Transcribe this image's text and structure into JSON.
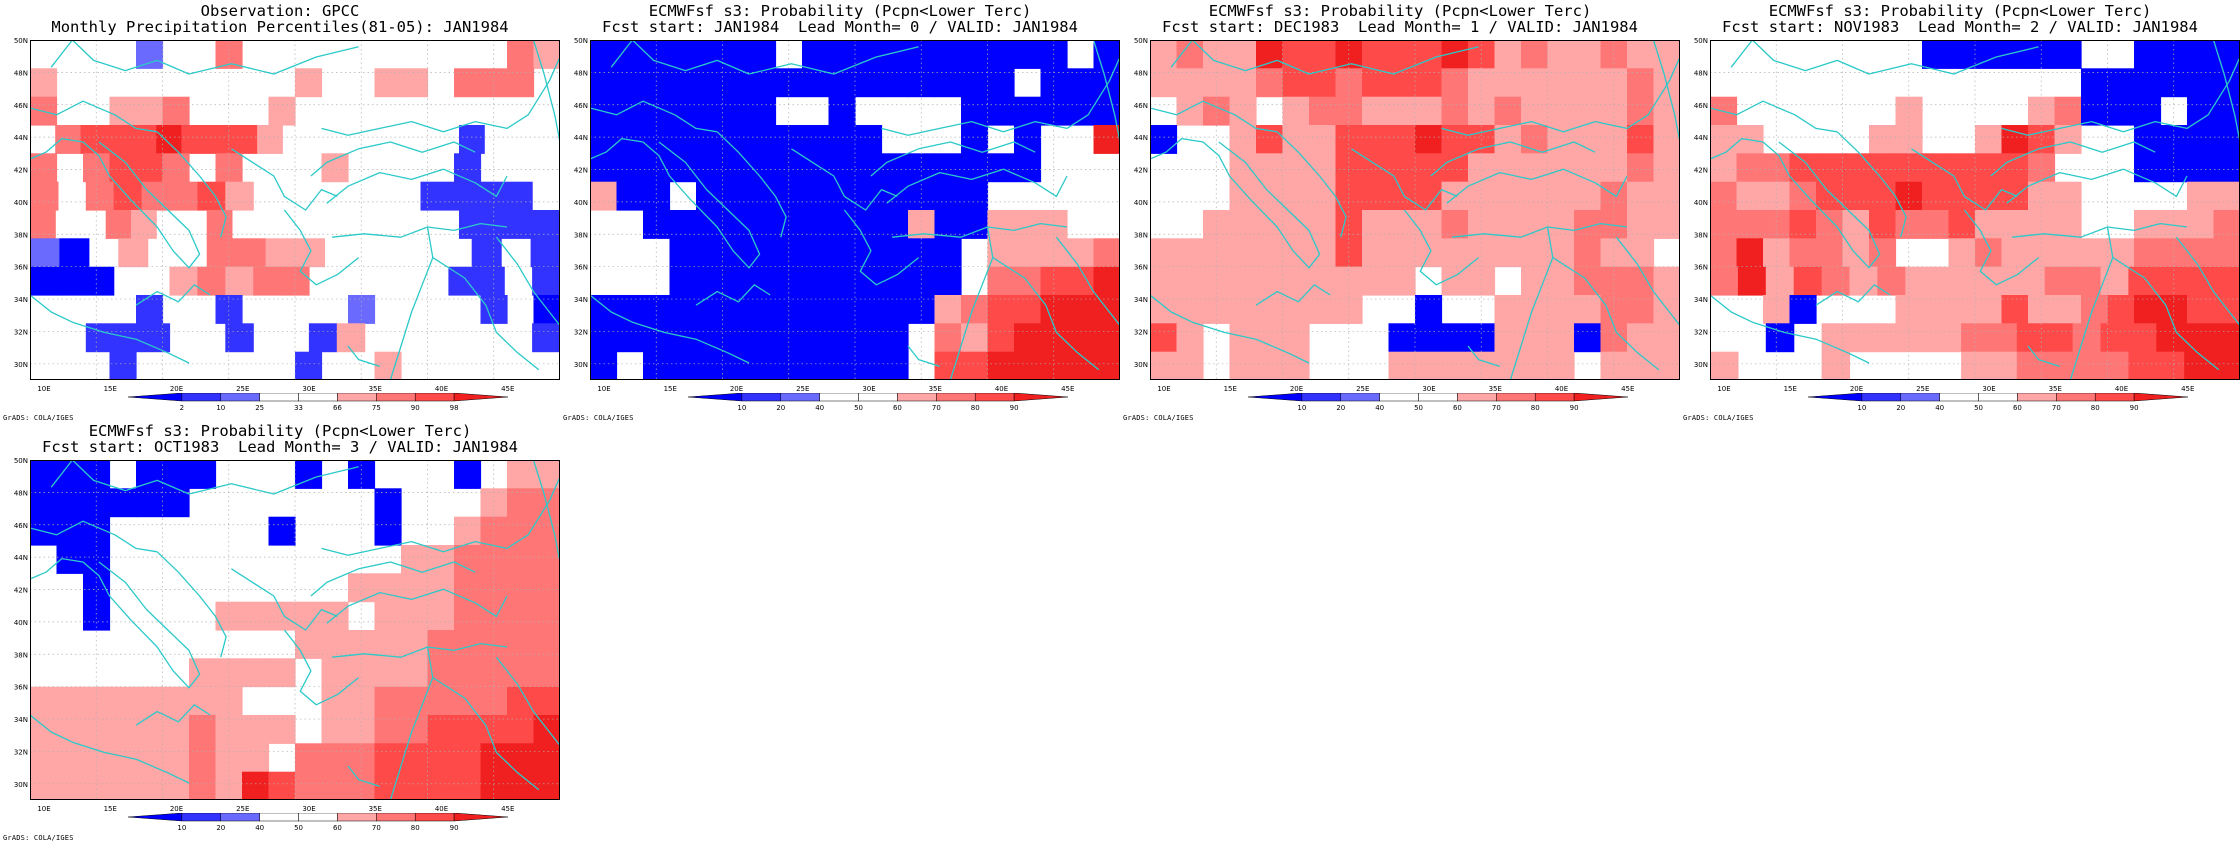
{
  "colors": {
    "blues": [
      "#0000ff",
      "#3333ff",
      "#6a6aff",
      "#9d9dff"
    ],
    "reds": [
      "#ffa6a6",
      "#ff7676",
      "#ff4a4a",
      "#f02020",
      "#d40000"
    ],
    "coast": "#2cc9c9",
    "grid": "#b0b0b0"
  },
  "map": {
    "lon_ticks": [
      "10E",
      "15E",
      "20E",
      "25E",
      "30E",
      "35E",
      "40E",
      "45E"
    ],
    "lat_ticks": [
      "50N",
      "48N",
      "46N",
      "44N",
      "42N",
      "40N",
      "38N",
      "36N",
      "34N",
      "32N",
      "30N"
    ],
    "credit": "GrADS: COLA/IGES"
  },
  "panels": [
    {
      "title1": "Observation: GPCC",
      "title2": "Monthly Precipitation Percentiles(81-05): JAN1984",
      "levels": [
        "2",
        "10",
        "25",
        "33",
        "66",
        "75",
        "90",
        "98"
      ],
      "kind": "obs",
      "grid": [
        "....3..R..........RS",
        "S.........S..SS.RRR.",
        "R..SSR...S..........",
        ".RTTTUTTTS.......2...",
        "R.RTTR.R...S....2...",
        "R.RTRRTS......2222.",
        "R..RS..R.........2222",
        "31.S..RRSS.....2.2",
        "111..SRSRR.....22.2",
        "....2..2....3....2.1",
        "..222..2..2S......2",
        "...2......2..S......"
      ]
    },
    {
      "title1": "ECMWFsf s3: Probability (Pcpn<Lower Terc)",
      "title2": "Fcst start: JAN1984  Lead Month= 0 / VALID: JAN1984",
      "levels": [
        "10",
        "20",
        "40",
        "50",
        "60",
        "70",
        "80",
        "90"
      ],
      "kind": "fc"
    },
    {
      "title1": "ECMWFsf s3: Probability (Pcpn<Lower Terc)",
      "title2": "Fcst start: DEC1983  Lead Month= 1 / VALID: JAN1984",
      "levels": [
        "10",
        "20",
        "40",
        "50",
        "60",
        "70",
        "80",
        "90"
      ],
      "kind": "fc"
    },
    {
      "title1": "ECMWFsf s3: Probability (Pcpn<Lower Terc)",
      "title2": "Fcst start: NOV1983  Lead Month= 2 / VALID: JAN1984",
      "levels": [
        "10",
        "20",
        "40",
        "50",
        "60",
        "70",
        "80",
        "90"
      ],
      "kind": "fc"
    },
    {
      "title1": "ECMWFsf s3: Probability (Pcpn<Lower Terc)",
      "title2": "Fcst start: OCT1983  Lead Month= 3 / VALID: JAN1984",
      "levels": [
        "10",
        "20",
        "40",
        "50",
        "60",
        "70",
        "80",
        "90"
      ],
      "kind": "fc"
    }
  ],
  "grids": [
    [
      "1111111.1111111111.1",
      "1111111111111111.111",
      "1111111..1....111111",
      "11111111111...1.1..U",
      "11111111111111111...",
      "S11.11111111111.....",
      "..1111111111S11SSS..",
      "...11111111111.SSSSR",
      "...11111111111.RRTTU",
      "1111111111111SRTTUUU",
      "111111111111.RSTUUUU",
      "1.1111111111.TTUUUUU"
    ],
    [
      "SRSSUTTUTTTUTSRSSRSS",
      "SSSSRTTRTTTRSSSSSSRS",
      ".SRS.SRRSSSRSRSSSSRS",
      "1..STSSTTTUTTSRSSSTS",
      "...SSSSTTTTTSSSSSSRS",
      "...SSSSTTTTSSSSSSRSS",
      "..SSSSSTSSSRSSSSRRSS",
      "SSSSSSSTSSSSSSSSRSS.",
      "SSSSSSSSSS.SS.SSRRRS",
      "SSSSSSSS..1..SSSSRRS",
      "TS.SSS...1111SSS1RSS",
      "SS.SSS...SSSSSSS.SSS"
    ],
    [
      "........111111..1111",
      "..............111111",
      "R......S....SR111.11",
      "SS....SS..SUTS..1111",
      "SRRTTTTTTTTTR...1111",
      "RSSRTTTUTTTTSS....SS",
      "RRRTRSTRRTSSSS..SSSR",
      "RUSRRSR..SRSSSSSRRRR",
      "RUSTRSRSSSSSRRSTTTT",
      "..S1...SSSSTSSRTUUTT",
      "..1.SSSSSRRTTRTTUUU",
      "S...S....SSRRRRTTUU"
    ],
    [
      "111.111...1.1...1.SS",
      "111111.......1...SRR",
      "111......1...1..SRRR",
      ".11...........SSRRRR",
      "..1.........SSSSRRRR",
      "..1....SSSSS.SSSRRRR",
      "..........SSSSSRRRRR",
      "......SSSS.SSSSRRRRR",
      "SSSSSSSS...SSRRRRRTT",
      "SSSSSSRSSS.SSRRTTTTU",
      "SSSSSSRSS.RRRTTTTUUU",
      "SSSSSSRSUTRRRTTTTUUU"
    ]
  ]
}
